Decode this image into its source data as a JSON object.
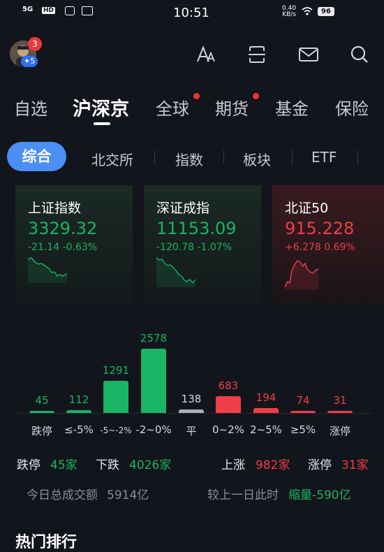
{
  "status": {
    "network": "5G",
    "hd": "HD",
    "time": "10:51",
    "speed_value": "0.40",
    "speed_unit": "KB/s",
    "battery": "96"
  },
  "header": {
    "notification_count": "3",
    "level": "✦5"
  },
  "tabs": [
    {
      "label": "自选"
    },
    {
      "label": "沪深京"
    },
    {
      "label": "全球"
    },
    {
      "label": "期货"
    },
    {
      "label": "基金"
    },
    {
      "label": "保险"
    }
  ],
  "subtabs": [
    {
      "label": "综合"
    },
    {
      "label": "北交所"
    },
    {
      "label": "指数"
    },
    {
      "label": "板块"
    },
    {
      "label": "ETF"
    }
  ],
  "indices": [
    {
      "name": "上证指数",
      "value": "3329.32",
      "change": "-21.14 -0.63%",
      "trend": "down",
      "color": "#19b464"
    },
    {
      "name": "深证成指",
      "value": "11153.09",
      "change": "-120.78 -1.07%",
      "trend": "down",
      "color": "#19b464"
    },
    {
      "name": "北证50",
      "value": "915.228",
      "change": "+6.278 0.69%",
      "trend": "up",
      "color": "#ef3e47"
    }
  ],
  "distribution": [
    {
      "label": "跌停",
      "value": 45,
      "count": "45",
      "color": "#19b464"
    },
    {
      "label": "≤-5%",
      "value": 112,
      "count": "112",
      "color": "#19b464"
    },
    {
      "label": "-5~-2%",
      "value": 1291,
      "count": "1291",
      "color": "#19b464"
    },
    {
      "label": "-2~0%",
      "value": 2578,
      "count": "2578",
      "color": "#19b464"
    },
    {
      "label": "平",
      "value": 138,
      "count": "138",
      "color": "#b0b2b8"
    },
    {
      "label": "0~2%",
      "value": 683,
      "count": "683",
      "color": "#ef3e47"
    },
    {
      "label": "2~5%",
      "value": 194,
      "count": "194",
      "color": "#ef3e47"
    },
    {
      "label": "≥5%",
      "value": 74,
      "count": "74",
      "color": "#ef3e47"
    },
    {
      "label": "涨停",
      "value": 31,
      "count": "31",
      "color": "#ef3e47"
    }
  ],
  "summary": {
    "limit_down_label": "跌停",
    "limit_down_value": "45家",
    "down_label": "下跌",
    "down_value": "4026家",
    "up_label": "上涨",
    "up_value": "982家",
    "limit_up_label": "涨停",
    "limit_up_value": "31家",
    "turnover_label": "今日总成交额",
    "turnover_value": "5914亿",
    "compare_label": "较上一日此时",
    "compare_value": "缩量-590亿"
  },
  "section_title": "热门排行"
}
